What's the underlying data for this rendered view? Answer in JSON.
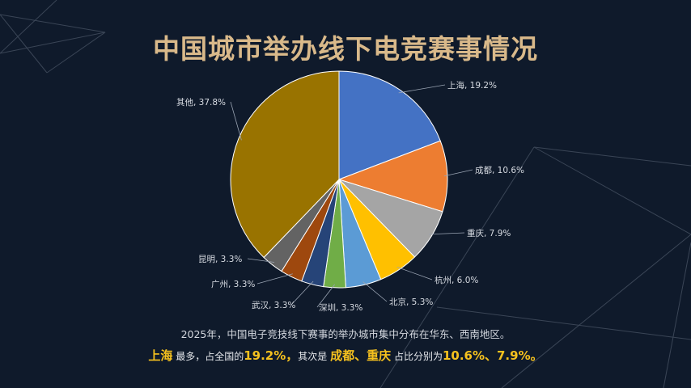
{
  "title": "中国城市举办线下电竞赛事情况",
  "chart_data": {
    "type": "pie",
    "slices": [
      {
        "name": "上海",
        "value": 19.2,
        "label": "上海, 19.2%",
        "color": "#4472c4"
      },
      {
        "name": "成都",
        "value": 10.6,
        "label": "成都, 10.6%",
        "color": "#ed7d31"
      },
      {
        "name": "重庆",
        "value": 7.9,
        "label": "重庆, 7.9%",
        "color": "#a5a5a5"
      },
      {
        "name": "杭州",
        "value": 6.0,
        "label": "杭州, 6.0%",
        "color": "#ffc000"
      },
      {
        "name": "北京",
        "value": 5.3,
        "label": "北京, 5.3%",
        "color": "#5b9bd5"
      },
      {
        "name": "深圳",
        "value": 3.3,
        "label": "深圳, 3.3%",
        "color": "#70ad47"
      },
      {
        "name": "武汉",
        "value": 3.3,
        "label": "武汉, 3.3%",
        "color": "#264478"
      },
      {
        "name": "广州",
        "value": 3.3,
        "label": "广州, 3.3%",
        "color": "#9e480e"
      },
      {
        "name": "昆明",
        "value": 3.3,
        "label": "昆明, 3.3%",
        "color": "#636363"
      },
      {
        "name": "其他",
        "value": 37.8,
        "label": "其他, 37.8%",
        "color": "#997300"
      }
    ]
  },
  "caption": {
    "line1": "2025年，中国电子竞技线下赛事的举办城市集中分布在华东、西南地区。",
    "line2": {
      "city1": "上海",
      "text1": " 最多，占全国的",
      "pct1": "19.2%，",
      "text2": "其次是 ",
      "cities2": "成都、重庆",
      "text3": " 占比分别为",
      "pcts2": "10.6%、7.9%。"
    }
  }
}
